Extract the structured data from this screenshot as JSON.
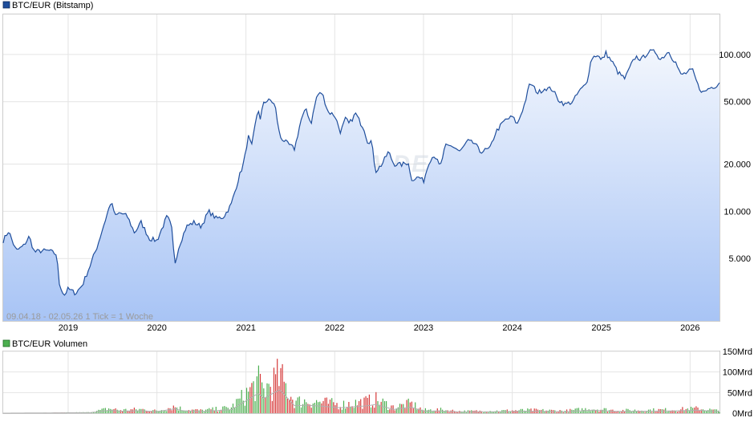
{
  "chart_data": [
    {
      "type": "area",
      "legend": "BTC/EUR (Bitstamp)",
      "colors": {
        "line": "#1f4e9c",
        "fill_top": "#f2f6fd",
        "fill_bottom": "#a8c4f5",
        "grid": "#e4e4e4"
      },
      "scale": "log",
      "ylim": [
        2000,
        180000
      ],
      "x_range": [
        "2018-04-09",
        "2026-05-02"
      ],
      "x_ticks": [
        "2019",
        "2020",
        "2021",
        "2022",
        "2023",
        "2024",
        "2025",
        "2026"
      ],
      "y_ticks": [
        {
          "value": 5000,
          "label": "5.000"
        },
        {
          "value": 10000,
          "label": "10.000"
        },
        {
          "value": 20000,
          "label": "20.000"
        },
        {
          "value": 50000,
          "label": "50.000"
        },
        {
          "value": 100000,
          "label": "100.000"
        }
      ],
      "info": "09.04.18 - 02.05.26    1 Tick = 1 Woche",
      "watermark": "ARIVA.DE",
      "points": [
        [
          "2018-04-09",
          6500
        ],
        [
          "2018-05-01",
          7500
        ],
        [
          "2018-06-01",
          5600
        ],
        [
          "2018-07-01",
          6000
        ],
        [
          "2018-07-25",
          6900
        ],
        [
          "2018-08-15",
          5500
        ],
        [
          "2018-09-15",
          5600
        ],
        [
          "2018-10-15",
          5600
        ],
        [
          "2018-11-15",
          5300
        ],
        [
          "2018-11-25",
          3500
        ],
        [
          "2018-12-15",
          2900
        ],
        [
          "2019-01-01",
          3200
        ],
        [
          "2019-02-01",
          3000
        ],
        [
          "2019-03-01",
          3400
        ],
        [
          "2019-04-01",
          4500
        ],
        [
          "2019-05-01",
          6000
        ],
        [
          "2019-05-20",
          7500
        ],
        [
          "2019-06-26",
          11500
        ],
        [
          "2019-07-15",
          9300
        ],
        [
          "2019-08-01",
          9800
        ],
        [
          "2019-09-01",
          9300
        ],
        [
          "2019-10-01",
          7300
        ],
        [
          "2019-10-28",
          8500
        ],
        [
          "2019-12-01",
          6700
        ],
        [
          "2020-01-01",
          6500
        ],
        [
          "2020-02-12",
          9300
        ],
        [
          "2020-03-01",
          8000
        ],
        [
          "2020-03-14",
          4600
        ],
        [
          "2020-04-01",
          6000
        ],
        [
          "2020-05-01",
          8000
        ],
        [
          "2020-06-01",
          8500
        ],
        [
          "2020-07-01",
          8000
        ],
        [
          "2020-08-01",
          10000
        ],
        [
          "2020-09-01",
          9000
        ],
        [
          "2020-10-01",
          9200
        ],
        [
          "2020-11-01",
          11000
        ],
        [
          "2020-12-01",
          16000
        ],
        [
          "2020-12-25",
          21000
        ],
        [
          "2021-01-10",
          30000
        ],
        [
          "2021-01-25",
          26000
        ],
        [
          "2021-02-20",
          46000
        ],
        [
          "2021-03-01",
          38000
        ],
        [
          "2021-03-15",
          50000
        ],
        [
          "2021-04-14",
          51000
        ],
        [
          "2021-05-01",
          47000
        ],
        [
          "2021-05-20",
          30000
        ],
        [
          "2021-06-20",
          27000
        ],
        [
          "2021-07-20",
          25000
        ],
        [
          "2021-08-15",
          38000
        ],
        [
          "2021-09-06",
          45000
        ],
        [
          "2021-09-25",
          36000
        ],
        [
          "2021-10-20",
          55000
        ],
        [
          "2021-11-10",
          57000
        ],
        [
          "2021-12-05",
          43000
        ],
        [
          "2022-01-01",
          41000
        ],
        [
          "2022-01-25",
          32000
        ],
        [
          "2022-02-15",
          39000
        ],
        [
          "2022-03-01",
          36000
        ],
        [
          "2022-03-28",
          42000
        ],
        [
          "2022-04-15",
          37000
        ],
        [
          "2022-05-01",
          34000
        ],
        [
          "2022-05-15",
          28000
        ],
        [
          "2022-06-01",
          28000
        ],
        [
          "2022-06-18",
          18000
        ],
        [
          "2022-07-15",
          20000
        ],
        [
          "2022-08-10",
          24000
        ],
        [
          "2022-09-01",
          20000
        ],
        [
          "2022-10-01",
          19800
        ],
        [
          "2022-11-01",
          20500
        ],
        [
          "2022-11-10",
          16000
        ],
        [
          "2022-12-15",
          16500
        ],
        [
          "2023-01-01",
          15500
        ],
        [
          "2023-01-25",
          21000
        ],
        [
          "2023-02-15",
          23000
        ],
        [
          "2023-03-10",
          19000
        ],
        [
          "2023-04-01",
          26000
        ],
        [
          "2023-05-01",
          26000
        ],
        [
          "2023-06-01",
          24000
        ],
        [
          "2023-07-01",
          28000
        ],
        [
          "2023-08-01",
          27000
        ],
        [
          "2023-08-20",
          24000
        ],
        [
          "2023-10-01",
          25000
        ],
        [
          "2023-10-25",
          32000
        ],
        [
          "2023-12-01",
          38000
        ],
        [
          "2024-01-01",
          40000
        ],
        [
          "2024-01-22",
          36000
        ],
        [
          "2024-02-20",
          48000
        ],
        [
          "2024-03-14",
          66000
        ],
        [
          "2024-04-15",
          57000
        ],
        [
          "2024-05-15",
          61000
        ],
        [
          "2024-06-15",
          60000
        ],
        [
          "2024-07-05",
          52000
        ],
        [
          "2024-08-05",
          48000
        ],
        [
          "2024-09-06",
          50000
        ],
        [
          "2024-10-01",
          58000
        ],
        [
          "2024-11-01",
          65000
        ],
        [
          "2024-11-22",
          95000
        ],
        [
          "2024-12-17",
          100000
        ],
        [
          "2025-01-01",
          91000
        ],
        [
          "2025-01-20",
          102000
        ],
        [
          "2025-02-20",
          87000
        ],
        [
          "2025-03-10",
          77000
        ],
        [
          "2025-04-08",
          70000
        ],
        [
          "2025-05-01",
          84000
        ],
        [
          "2025-05-22",
          97000
        ],
        [
          "2025-06-15",
          93000
        ],
        [
          "2025-07-14",
          104000
        ],
        [
          "2025-08-13",
          104000
        ],
        [
          "2025-09-01",
          93000
        ],
        [
          "2025-10-06",
          105000
        ],
        [
          "2025-10-20",
          95000
        ],
        [
          "2025-11-05",
          88000
        ],
        [
          "2025-11-22",
          74000
        ],
        [
          "2025-12-15",
          76000
        ],
        [
          "2026-01-10",
          80000
        ],
        [
          "2026-02-05",
          62000
        ],
        [
          "2026-02-25",
          57000
        ],
        [
          "2026-03-20",
          61000
        ],
        [
          "2026-04-15",
          63000
        ],
        [
          "2026-05-02",
          66000
        ]
      ]
    },
    {
      "type": "bar",
      "legend": "BTC/EUR Volumen",
      "colors": {
        "up": "#4caf50",
        "down": "#d63a3a",
        "line": "#b0b0b0"
      },
      "ylim": [
        0,
        150
      ],
      "y_ticks": [
        {
          "value": 0,
          "label": "0Mrd"
        },
        {
          "value": 50,
          "label": "50Mrd"
        },
        {
          "value": 100,
          "label": "100Mrd"
        },
        {
          "value": 150,
          "label": "150Mrd"
        }
      ],
      "profile": [
        [
          "2018-04-09",
          0
        ],
        [
          "2019-04-01",
          2
        ],
        [
          "2019-06-20",
          12
        ],
        [
          "2019-08-01",
          8
        ],
        [
          "2019-10-28",
          10
        ],
        [
          "2020-01-01",
          6
        ],
        [
          "2020-03-14",
          18
        ],
        [
          "2020-04-15",
          10
        ],
        [
          "2020-07-01",
          7
        ],
        [
          "2020-11-01",
          14
        ],
        [
          "2021-01-10",
          55
        ],
        [
          "2021-02-20",
          80
        ],
        [
          "2021-03-15",
          60
        ],
        [
          "2021-05-20",
          95
        ],
        [
          "2021-07-20",
          30
        ],
        [
          "2021-09-06",
          32
        ],
        [
          "2021-11-10",
          28
        ],
        [
          "2022-01-25",
          22
        ],
        [
          "2022-05-15",
          30
        ],
        [
          "2022-06-18",
          35
        ],
        [
          "2022-09-01",
          15
        ],
        [
          "2022-11-10",
          25
        ],
        [
          "2023-01-01",
          8
        ],
        [
          "2023-03-10",
          9
        ],
        [
          "2023-06-01",
          5
        ],
        [
          "2023-10-25",
          6
        ],
        [
          "2024-03-14",
          8
        ],
        [
          "2024-08-05",
          6
        ],
        [
          "2024-11-22",
          12
        ],
        [
          "2025-03-10",
          7
        ],
        [
          "2025-10-20",
          9
        ],
        [
          "2026-02-05",
          12
        ],
        [
          "2026-05-02",
          6
        ]
      ]
    }
  ]
}
